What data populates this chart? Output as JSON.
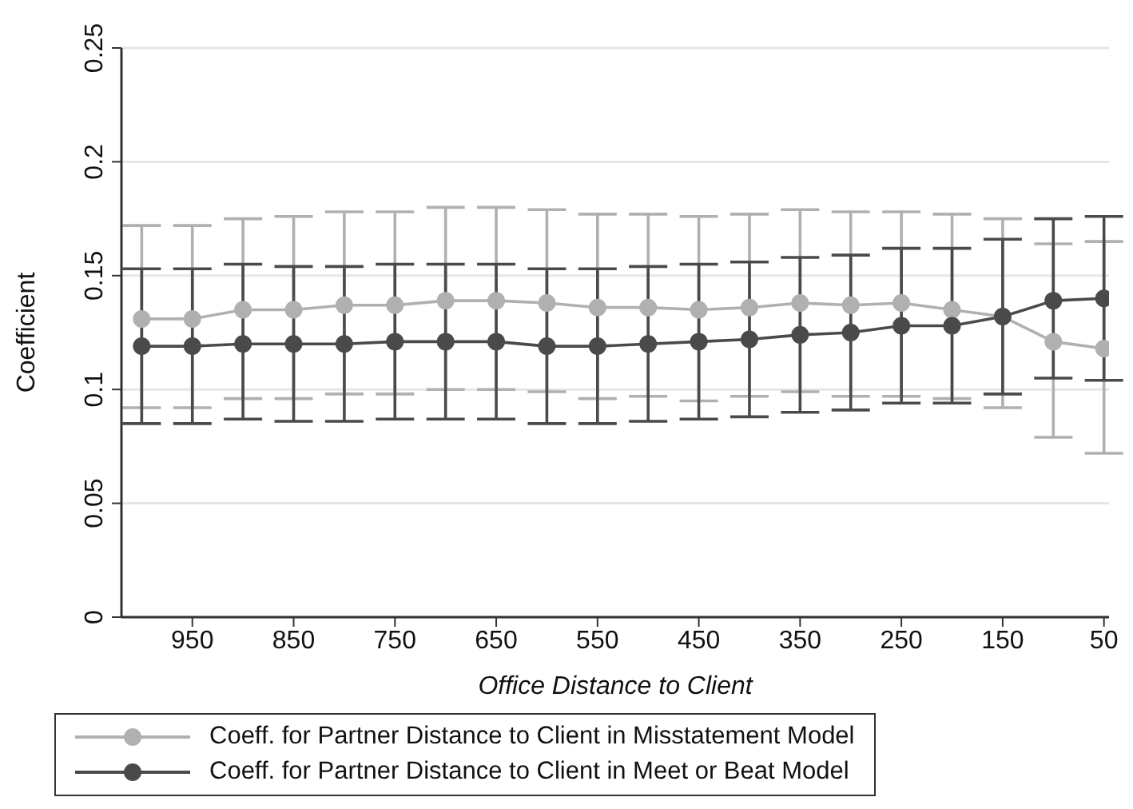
{
  "chart_data": {
    "type": "line",
    "xlabel": "Office Distance to Client",
    "ylabel": "Coefficient",
    "x": [
      1000,
      950,
      900,
      850,
      800,
      750,
      700,
      650,
      600,
      550,
      500,
      450,
      400,
      350,
      300,
      250,
      200,
      150,
      100,
      50
    ],
    "series": [
      {
        "name": "Coeff. for Partner Distance to Client in Misstatement Model",
        "color": "#b0b0b0",
        "values": [
          0.131,
          0.131,
          0.135,
          0.135,
          0.137,
          0.137,
          0.139,
          0.139,
          0.138,
          0.136,
          0.136,
          0.135,
          0.136,
          0.138,
          0.137,
          0.138,
          0.135,
          0.132,
          0.121,
          0.118
        ],
        "errors": [
          [
            0.092,
            0.172
          ],
          [
            0.092,
            0.172
          ],
          [
            0.096,
            0.175
          ],
          [
            0.096,
            0.176
          ],
          [
            0.098,
            0.178
          ],
          [
            0.098,
            0.178
          ],
          [
            0.1,
            0.18
          ],
          [
            0.1,
            0.18
          ],
          [
            0.099,
            0.179
          ],
          [
            0.096,
            0.177
          ],
          [
            0.097,
            0.177
          ],
          [
            0.095,
            0.176
          ],
          [
            0.097,
            0.177
          ],
          [
            0.099,
            0.179
          ],
          [
            0.097,
            0.178
          ],
          [
            0.097,
            0.178
          ],
          [
            0.096,
            0.177
          ],
          [
            0.092,
            0.175
          ],
          [
            0.079,
            0.164
          ],
          [
            0.072,
            0.165
          ]
        ]
      },
      {
        "name": "Coeff. for Partner Distance to Client in Meet or Beat Model",
        "color": "#4a4a4a",
        "values": [
          0.119,
          0.119,
          0.12,
          0.12,
          0.12,
          0.121,
          0.121,
          0.121,
          0.119,
          0.119,
          0.12,
          0.121,
          0.122,
          0.124,
          0.125,
          0.128,
          0.128,
          0.132,
          0.139,
          0.14
        ],
        "errors": [
          [
            0.085,
            0.153
          ],
          [
            0.085,
            0.153
          ],
          [
            0.087,
            0.155
          ],
          [
            0.086,
            0.154
          ],
          [
            0.086,
            0.154
          ],
          [
            0.087,
            0.155
          ],
          [
            0.087,
            0.155
          ],
          [
            0.087,
            0.155
          ],
          [
            0.085,
            0.153
          ],
          [
            0.085,
            0.153
          ],
          [
            0.086,
            0.154
          ],
          [
            0.087,
            0.155
          ],
          [
            0.088,
            0.156
          ],
          [
            0.09,
            0.158
          ],
          [
            0.091,
            0.159
          ],
          [
            0.094,
            0.162
          ],
          [
            0.094,
            0.162
          ],
          [
            0.098,
            0.166
          ],
          [
            0.105,
            0.175
          ],
          [
            0.104,
            0.176
          ]
        ]
      }
    ],
    "xlim": [
      1020,
      45
    ],
    "xticks": [
      950,
      850,
      750,
      650,
      550,
      450,
      350,
      250,
      150,
      50
    ],
    "ylim": [
      0,
      0.25
    ],
    "yticks": [
      0,
      0.05,
      0.1,
      0.15,
      0.2,
      0.25
    ],
    "grid": "y",
    "legend": "bottom",
    "marker": "circle",
    "line_style": "solid"
  }
}
